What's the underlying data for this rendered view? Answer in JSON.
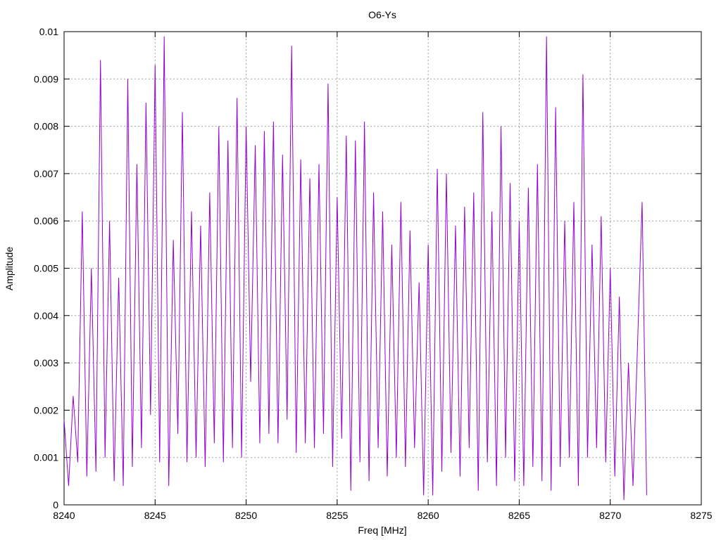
{
  "chart_data": {
    "type": "line",
    "title": "O6-Ys",
    "x_label": "Freq [MHz]",
    "y_label": "Amplitude",
    "xlim": [
      8240,
      8275
    ],
    "xticks": [
      8240,
      8245,
      8250,
      8255,
      8260,
      8265,
      8270,
      8275
    ],
    "ylim": [
      0,
      0.01
    ],
    "yticks": [
      0,
      0.001,
      0.002,
      0.003,
      0.004,
      0.005,
      0.006,
      0.007,
      0.008,
      0.009,
      0.01
    ],
    "grid": true,
    "series": [
      {
        "color": "#9400d3",
        "x": [
          8240,
          8240.25,
          8240.5,
          8240.75,
          8241,
          8241.25,
          8241.5,
          8241.75,
          8242,
          8242.25,
          8242.5,
          8242.75,
          8243,
          8243.25,
          8243.5,
          8243.75,
          8244,
          8244.25,
          8244.5,
          8244.75,
          8245,
          8245.25,
          8245.5,
          8245.75,
          8246,
          8246.25,
          8246.5,
          8246.75,
          8247,
          8247.25,
          8247.5,
          8247.75,
          8248,
          8248.25,
          8248.5,
          8248.75,
          8249,
          8249.25,
          8249.5,
          8249.75,
          8250,
          8250.25,
          8250.5,
          8250.75,
          8251,
          8251.25,
          8251.5,
          8251.75,
          8252,
          8252.25,
          8252.5,
          8252.75,
          8253,
          8253.25,
          8253.5,
          8253.75,
          8254,
          8254.25,
          8254.5,
          8254.75,
          8255,
          8255.25,
          8255.5,
          8255.75,
          8256,
          8256.25,
          8256.5,
          8256.75,
          8257,
          8257.25,
          8257.5,
          8257.75,
          8258,
          8258.25,
          8258.5,
          8258.75,
          8259,
          8259.25,
          8259.5,
          8259.75,
          8260,
          8260.25,
          8260.5,
          8260.75,
          8261,
          8261.25,
          8261.5,
          8261.75,
          8262,
          8262.25,
          8262.5,
          8262.75,
          8263,
          8263.25,
          8263.5,
          8263.75,
          8264,
          8264.25,
          8264.5,
          8264.75,
          8265,
          8265.25,
          8265.5,
          8265.75,
          8266,
          8266.25,
          8266.5,
          8266.75,
          8267,
          8267.25,
          8267.5,
          8267.75,
          8268,
          8268.25,
          8268.5,
          8268.75,
          8269,
          8269.25,
          8269.5,
          8269.75,
          8270,
          8270.25,
          8270.5,
          8270.75,
          8271,
          8271.25,
          8271.5,
          8271.75,
          8272
        ],
        "values": [
          0.0018,
          0.0004,
          0.0023,
          0.0009,
          0.0062,
          0.0006,
          0.005,
          0.0007,
          0.0094,
          0.001,
          0.006,
          0.0005,
          0.0048,
          0.0004,
          0.009,
          0.0008,
          0.0072,
          0.0012,
          0.0085,
          0.0019,
          0.0093,
          0.0009,
          0.0099,
          0.0004,
          0.0056,
          0.0015,
          0.0083,
          0.0009,
          0.0062,
          0.001,
          0.0059,
          0.0008,
          0.0066,
          0.0013,
          0.008,
          0.0009,
          0.0077,
          0.0012,
          0.0086,
          0.001,
          0.008,
          0.0026,
          0.0076,
          0.0013,
          0.0079,
          0.0015,
          0.0081,
          0.0013,
          0.0074,
          0.0018,
          0.0097,
          0.0011,
          0.0073,
          0.0013,
          0.0069,
          0.0012,
          0.0072,
          0.0015,
          0.0089,
          0.0008,
          0.0065,
          0.0014,
          0.0078,
          0.0003,
          0.0077,
          0.0009,
          0.0081,
          0.0005,
          0.0066,
          0.0012,
          0.0062,
          0.0006,
          0.0055,
          0.001,
          0.0064,
          0.0008,
          0.0058,
          0.0012,
          0.0047,
          0.0002,
          0.0055,
          0.0002,
          0.0071,
          0.0007,
          0.007,
          0.0011,
          0.0059,
          0.0006,
          0.0063,
          0.0012,
          0.0066,
          0.0003,
          0.0083,
          0.0009,
          0.0062,
          0.0004,
          0.008,
          0.001,
          0.0068,
          0.0005,
          0.006,
          0.0004,
          0.0067,
          0.0008,
          0.0072,
          0.0005,
          0.0099,
          0.0003,
          0.0084,
          0.0008,
          0.006,
          0.001,
          0.0064,
          0.0004,
          0.0091,
          0.001,
          0.0055,
          0.0012,
          0.0061,
          0.0009,
          0.005,
          0.0006,
          0.0044,
          0.0001,
          0.003,
          0.0004,
          0.0034,
          0.0064,
          0.0002
        ]
      }
    ]
  }
}
